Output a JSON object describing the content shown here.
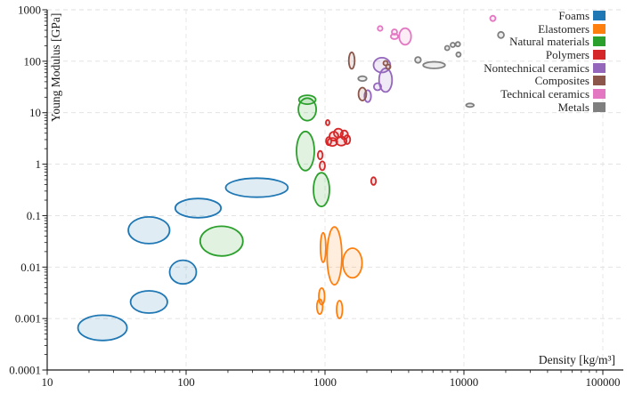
{
  "chart_data": {
    "type": "scatter",
    "mark": "ellipse",
    "description": "Ashby material selection chart: Young Modulus vs Density, log-log axes, material family ellipses",
    "title": "",
    "xlabel": "Density [kg/m³]",
    "ylabel": "Young Modulus [GPa]",
    "x_scale": "log",
    "y_scale": "log",
    "xlim": [
      10,
      100000
    ],
    "ylim": [
      0.0001,
      1000
    ],
    "grid": "dashed major gridlines both axes",
    "legend_position": "upper right, no frame",
    "x_ticks": [
      {
        "value": 10,
        "label": "10"
      },
      {
        "value": 100,
        "label": "100"
      },
      {
        "value": 1000,
        "label": "1000"
      },
      {
        "value": 10000,
        "label": "10000"
      },
      {
        "value": 100000,
        "label": "100000"
      }
    ],
    "y_ticks": [
      {
        "value": 1000,
        "label": "1000"
      },
      {
        "value": 100,
        "label": "100"
      },
      {
        "value": 10,
        "label": "10"
      },
      {
        "value": 1,
        "label": "1"
      },
      {
        "value": 0.1,
        "label": "0.1"
      },
      {
        "value": 0.01,
        "label": "0.01"
      },
      {
        "value": 0.001,
        "label": "0.001"
      },
      {
        "value": 0.0001,
        "label": "0.0001"
      }
    ],
    "ellipse_format": "[density_kg_m3, young_modulus_GPa, rx_log10_decades, ry_log10_decades]",
    "groups": [
      {
        "key": "foams",
        "label": "Foams",
        "color": "#1f77b4",
        "ellipses": [
          [
            25,
            0.00066,
            0.176,
            0.245
          ],
          [
            54,
            0.0021,
            0.133,
            0.216
          ],
          [
            95,
            0.008,
            0.096,
            0.23
          ],
          [
            54,
            0.052,
            0.149,
            0.259
          ],
          [
            122,
            0.14,
            0.165,
            0.187
          ],
          [
            323,
            0.35,
            0.224,
            0.185
          ]
        ]
      },
      {
        "key": "elastomers",
        "label": "Elastomers",
        "color": "#ff7f0e",
        "ellipses": [
          [
            970,
            0.024,
            0.019,
            0.289
          ],
          [
            1170,
            0.0165,
            0.053,
            0.562
          ],
          [
            1575,
            0.012,
            0.069,
            0.289
          ],
          [
            947,
            0.0027,
            0.021,
            0.161
          ],
          [
            916,
            0.0017,
            0.021,
            0.143
          ],
          [
            1272,
            0.0015,
            0.021,
            0.173
          ]
        ]
      },
      {
        "key": "natural-materials",
        "label": "Natural materials",
        "color": "#2ca02c",
        "ellipses": [
          [
            180,
            0.032,
            0.154,
            0.289
          ],
          [
            745,
            11.6,
            0.064,
            0.22
          ],
          [
            745,
            17.9,
            0.06,
            0.086
          ],
          [
            723,
            1.8,
            0.064,
            0.38
          ],
          [
            942,
            0.32,
            0.058,
            0.328
          ]
        ]
      },
      {
        "key": "polymers",
        "label": "Polymers",
        "color": "#d62728",
        "ellipses": [
          [
            1248,
            4.0,
            0.032,
            0.086
          ],
          [
            1378,
            3.7,
            0.026,
            0.086
          ],
          [
            1159,
            3.5,
            0.032,
            0.086
          ],
          [
            1310,
            2.8,
            0.038,
            0.086
          ],
          [
            1130,
            2.7,
            0.035,
            0.078
          ],
          [
            1445,
            3.0,
            0.022,
            0.086
          ],
          [
            1062,
            2.8,
            0.019,
            0.078
          ],
          [
            1045,
            6.4,
            0.013,
            0.052
          ],
          [
            923,
            1.5,
            0.017,
            0.081
          ],
          [
            957,
            0.93,
            0.019,
            0.086
          ],
          [
            2235,
            0.47,
            0.017,
            0.074
          ]
        ]
      },
      {
        "key": "nontechnical-ceramics",
        "label": "Nontechnical ceramics",
        "color": "#9467bd",
        "ellipses": [
          [
            2570,
            84,
            0.06,
            0.143
          ],
          [
            2730,
            43,
            0.047,
            0.23
          ],
          [
            2390,
            32,
            0.026,
            0.069
          ],
          [
            2032,
            21,
            0.024,
            0.116
          ]
        ]
      },
      {
        "key": "composites",
        "label": "Composites",
        "color": "#8c564b",
        "ellipses": [
          [
            1557,
            103,
            0.021,
            0.161
          ],
          [
            1858,
            23,
            0.028,
            0.126
          ],
          [
            2730,
            92,
            0.016,
            0.043
          ],
          [
            2851,
            78,
            0.016,
            0.043
          ]
        ]
      },
      {
        "key": "technical-ceramics",
        "label": "Technical ceramics",
        "color": "#e377c2",
        "ellipses": [
          [
            2495,
            433,
            0.017,
            0.047
          ],
          [
            3162,
            370,
            0.019,
            0.052
          ],
          [
            3162,
            303,
            0.026,
            0.052
          ],
          [
            3776,
            303,
            0.043,
            0.161
          ],
          [
            16165,
            680,
            0.019,
            0.052
          ]
        ]
      },
      {
        "key": "metals",
        "label": "Metals",
        "color": "#7f7f7f",
        "ellipses": [
          [
            1858,
            46,
            0.03,
            0.047
          ],
          [
            4666,
            106,
            0.021,
            0.057
          ],
          [
            6100,
            84,
            0.079,
            0.064
          ],
          [
            7580,
            181,
            0.016,
            0.043
          ],
          [
            8310,
            208,
            0.016,
            0.043
          ],
          [
            9050,
            214,
            0.016,
            0.043
          ],
          [
            9143,
            135,
            0.016,
            0.043
          ],
          [
            11050,
            14,
            0.028,
            0.035
          ],
          [
            18490,
            324,
            0.022,
            0.06
          ]
        ]
      }
    ],
    "style": {
      "spine_color": "#1a1a1a",
      "tick_label_color": "#1a1a1a",
      "gridline_color": "#dfdfdf",
      "ellipse_fill_alpha": 0.14,
      "background": "#ffffff"
    }
  }
}
